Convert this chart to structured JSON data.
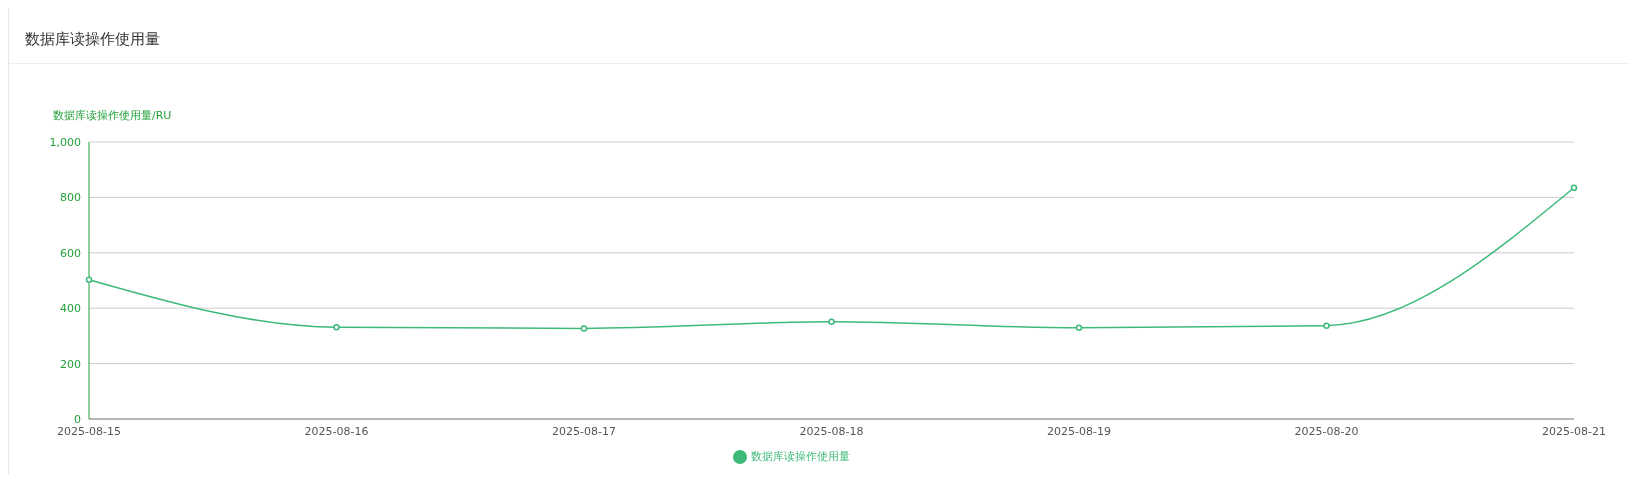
{
  "chart_data": {
    "type": "line",
    "title": "数据库读操作使用量",
    "ylabel": "数据库读操作使用量/RU",
    "categories": [
      "2025-08-15",
      "2025-08-16",
      "2025-08-17",
      "2025-08-18",
      "2025-08-19",
      "2025-08-20",
      "2025-08-21"
    ],
    "series": [
      {
        "name": "数据库读操作使用量",
        "color": "#3dba7a",
        "values": [
          503,
          331,
          327,
          351,
          329,
          337,
          835
        ]
      }
    ],
    "ylim": [
      0,
      1000
    ],
    "yticks": [
      0,
      200,
      400,
      600,
      800,
      {
        "value": 1000,
        "label": "1,000"
      }
    ],
    "grid": "y",
    "legend": "bottom",
    "marker": "circle",
    "line_style": "solid"
  }
}
